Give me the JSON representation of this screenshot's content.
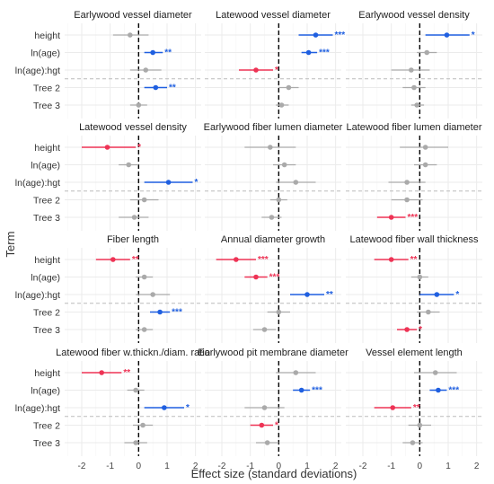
{
  "chart_data": {
    "type": "forest",
    "ylabel": "Term",
    "xlabel": "Effect size (standard deviations)",
    "xlim": [
      -2.6,
      2.2
    ],
    "xticks": [
      -2,
      -1,
      0,
      1,
      2
    ],
    "terms": [
      "height",
      "ln(age)",
      "ln(age):hgt",
      "Tree 2",
      "Tree 3"
    ],
    "colors": {
      "positive": "#1f5fe0",
      "negative": "#ee3355",
      "nonsignificant": "#aaaaaa",
      "zero_line": "#000000"
    },
    "panels": [
      {
        "title": "Earlywood vessel diameter",
        "points": [
          {
            "term": "height",
            "est": -0.3,
            "lo": -0.9,
            "hi": 0.35,
            "sig": ""
          },
          {
            "term": "ln(age)",
            "est": 0.5,
            "lo": 0.2,
            "hi": 0.85,
            "sig": "**"
          },
          {
            "term": "ln(age):hgt",
            "est": 0.25,
            "lo": -0.3,
            "hi": 0.8,
            "sig": ""
          },
          {
            "term": "Tree 2",
            "est": 0.6,
            "lo": 0.2,
            "hi": 1.0,
            "sig": "**"
          },
          {
            "term": "Tree 3",
            "est": 0.0,
            "lo": -0.3,
            "hi": 0.3,
            "sig": ""
          }
        ]
      },
      {
        "title": "Latewood vessel diameter",
        "points": [
          {
            "term": "height",
            "est": 1.3,
            "lo": 0.7,
            "hi": 1.9,
            "sig": "***"
          },
          {
            "term": "ln(age)",
            "est": 1.05,
            "lo": 0.8,
            "hi": 1.35,
            "sig": "***"
          },
          {
            "term": "ln(age):hgt",
            "est": -0.8,
            "lo": -1.4,
            "hi": -0.2,
            "sig": "*"
          },
          {
            "term": "Tree 2",
            "est": 0.35,
            "lo": 0.0,
            "hi": 0.7,
            "sig": ""
          },
          {
            "term": "Tree 3",
            "est": 0.1,
            "lo": -0.1,
            "hi": 0.35,
            "sig": ""
          }
        ]
      },
      {
        "title": "Earlywood vessel density",
        "points": [
          {
            "term": "height",
            "est": 0.95,
            "lo": 0.2,
            "hi": 1.75,
            "sig": "*"
          },
          {
            "term": "ln(age)",
            "est": 0.25,
            "lo": -0.1,
            "hi": 0.6,
            "sig": ""
          },
          {
            "term": "ln(age):hgt",
            "est": -0.3,
            "lo": -1.0,
            "hi": 0.35,
            "sig": ""
          },
          {
            "term": "Tree 2",
            "est": -0.2,
            "lo": -0.6,
            "hi": 0.2,
            "sig": ""
          },
          {
            "term": "Tree 3",
            "est": -0.1,
            "lo": -0.3,
            "hi": 0.15,
            "sig": ""
          }
        ]
      },
      {
        "title": "Latewood vessel density",
        "points": [
          {
            "term": "height",
            "est": -1.1,
            "lo": -2.0,
            "hi": -0.1,
            "sig": "*"
          },
          {
            "term": "ln(age)",
            "est": -0.35,
            "lo": -0.7,
            "hi": 0.0,
            "sig": ""
          },
          {
            "term": "ln(age):hgt",
            "est": 1.05,
            "lo": 0.2,
            "hi": 1.9,
            "sig": "*"
          },
          {
            "term": "Tree 2",
            "est": 0.2,
            "lo": -0.3,
            "hi": 0.7,
            "sig": ""
          },
          {
            "term": "Tree 3",
            "est": -0.15,
            "lo": -0.7,
            "hi": 0.35,
            "sig": ""
          }
        ]
      },
      {
        "title": "Earlywood fiber lumen diameter",
        "points": [
          {
            "term": "height",
            "est": -0.3,
            "lo": -1.2,
            "hi": 0.6,
            "sig": ""
          },
          {
            "term": "ln(age)",
            "est": 0.2,
            "lo": -0.2,
            "hi": 0.6,
            "sig": ""
          },
          {
            "term": "ln(age):hgt",
            "est": 0.6,
            "lo": -0.1,
            "hi": 1.3,
            "sig": ""
          },
          {
            "term": "Tree 2",
            "est": 0.0,
            "lo": -0.3,
            "hi": 0.3,
            "sig": ""
          },
          {
            "term": "Tree 3",
            "est": -0.25,
            "lo": -0.6,
            "hi": 0.1,
            "sig": ""
          }
        ]
      },
      {
        "title": "Latewood fiber lumen diameter",
        "points": [
          {
            "term": "height",
            "est": 0.2,
            "lo": -0.7,
            "hi": 1.0,
            "sig": ""
          },
          {
            "term": "ln(age)",
            "est": 0.2,
            "lo": -0.2,
            "hi": 0.6,
            "sig": ""
          },
          {
            "term": "ln(age):hgt",
            "est": -0.45,
            "lo": -1.1,
            "hi": 0.2,
            "sig": ""
          },
          {
            "term": "Tree 2",
            "est": -0.45,
            "lo": -1.0,
            "hi": 0.1,
            "sig": ""
          },
          {
            "term": "Tree 3",
            "est": -1.0,
            "lo": -1.5,
            "hi": -0.5,
            "sig": "***"
          }
        ]
      },
      {
        "title": "Fiber length",
        "points": [
          {
            "term": "height",
            "est": -0.9,
            "lo": -1.5,
            "hi": -0.3,
            "sig": "**"
          },
          {
            "term": "ln(age)",
            "est": 0.2,
            "lo": -0.1,
            "hi": 0.5,
            "sig": ""
          },
          {
            "term": "ln(age):hgt",
            "est": 0.5,
            "lo": -0.1,
            "hi": 1.1,
            "sig": ""
          },
          {
            "term": "Tree 2",
            "est": 0.75,
            "lo": 0.4,
            "hi": 1.1,
            "sig": "***"
          },
          {
            "term": "Tree 3",
            "est": 0.2,
            "lo": -0.1,
            "hi": 0.5,
            "sig": ""
          }
        ]
      },
      {
        "title": "Annual diameter growth",
        "points": [
          {
            "term": "height",
            "est": -1.5,
            "lo": -2.2,
            "hi": -0.8,
            "sig": "***"
          },
          {
            "term": "ln(age)",
            "est": -0.8,
            "lo": -1.2,
            "hi": -0.4,
            "sig": "***"
          },
          {
            "term": "ln(age):hgt",
            "est": 1.0,
            "lo": 0.4,
            "hi": 1.6,
            "sig": "**"
          },
          {
            "term": "Tree 2",
            "est": 0.0,
            "lo": -0.4,
            "hi": 0.4,
            "sig": ""
          },
          {
            "term": "Tree 3",
            "est": -0.5,
            "lo": -0.9,
            "hi": -0.1,
            "sig": ""
          }
        ]
      },
      {
        "title": "Latewood fiber wall thickness",
        "points": [
          {
            "term": "height",
            "est": -1.0,
            "lo": -1.6,
            "hi": -0.4,
            "sig": "**"
          },
          {
            "term": "ln(age)",
            "est": 0.0,
            "lo": -0.3,
            "hi": 0.3,
            "sig": ""
          },
          {
            "term": "ln(age):hgt",
            "est": 0.6,
            "lo": 0.0,
            "hi": 1.2,
            "sig": "*"
          },
          {
            "term": "Tree 2",
            "est": 0.3,
            "lo": -0.1,
            "hi": 0.7,
            "sig": ""
          },
          {
            "term": "Tree 3",
            "est": -0.45,
            "lo": -0.8,
            "hi": -0.1,
            "sig": "*"
          }
        ]
      },
      {
        "title": "Latewood fiber w.thickn./diam. ratio",
        "points": [
          {
            "term": "height",
            "est": -1.3,
            "lo": -2.0,
            "hi": -0.6,
            "sig": "**"
          },
          {
            "term": "ln(age)",
            "est": -0.1,
            "lo": -0.4,
            "hi": 0.2,
            "sig": ""
          },
          {
            "term": "ln(age):hgt",
            "est": 0.9,
            "lo": 0.2,
            "hi": 1.6,
            "sig": "*"
          },
          {
            "term": "Tree 2",
            "est": 0.15,
            "lo": -0.2,
            "hi": 0.5,
            "sig": ""
          },
          {
            "term": "Tree 3",
            "est": -0.1,
            "lo": -0.5,
            "hi": 0.3,
            "sig": ""
          }
        ]
      },
      {
        "title": "Earlywood pit membrane diameter",
        "points": [
          {
            "term": "height",
            "est": 0.6,
            "lo": -0.1,
            "hi": 1.3,
            "sig": ""
          },
          {
            "term": "ln(age)",
            "est": 0.8,
            "lo": 0.5,
            "hi": 1.1,
            "sig": "***"
          },
          {
            "term": "ln(age):hgt",
            "est": -0.5,
            "lo": -1.2,
            "hi": 0.2,
            "sig": ""
          },
          {
            "term": "Tree 2",
            "est": -0.6,
            "lo": -1.0,
            "hi": -0.2,
            "sig": "*"
          },
          {
            "term": "Tree 3",
            "est": -0.4,
            "lo": -0.8,
            "hi": 0.0,
            "sig": ""
          }
        ]
      },
      {
        "title": "Vessel element length",
        "points": [
          {
            "term": "height",
            "est": 0.55,
            "lo": -0.2,
            "hi": 1.3,
            "sig": ""
          },
          {
            "term": "ln(age)",
            "est": 0.65,
            "lo": 0.35,
            "hi": 0.95,
            "sig": "***"
          },
          {
            "term": "ln(age):hgt",
            "est": -0.95,
            "lo": -1.6,
            "hi": -0.3,
            "sig": "**"
          },
          {
            "term": "Tree 2",
            "est": 0.0,
            "lo": -0.4,
            "hi": 0.4,
            "sig": ""
          },
          {
            "term": "Tree 3",
            "est": -0.25,
            "lo": -0.6,
            "hi": 0.1,
            "sig": ""
          }
        ]
      }
    ]
  }
}
